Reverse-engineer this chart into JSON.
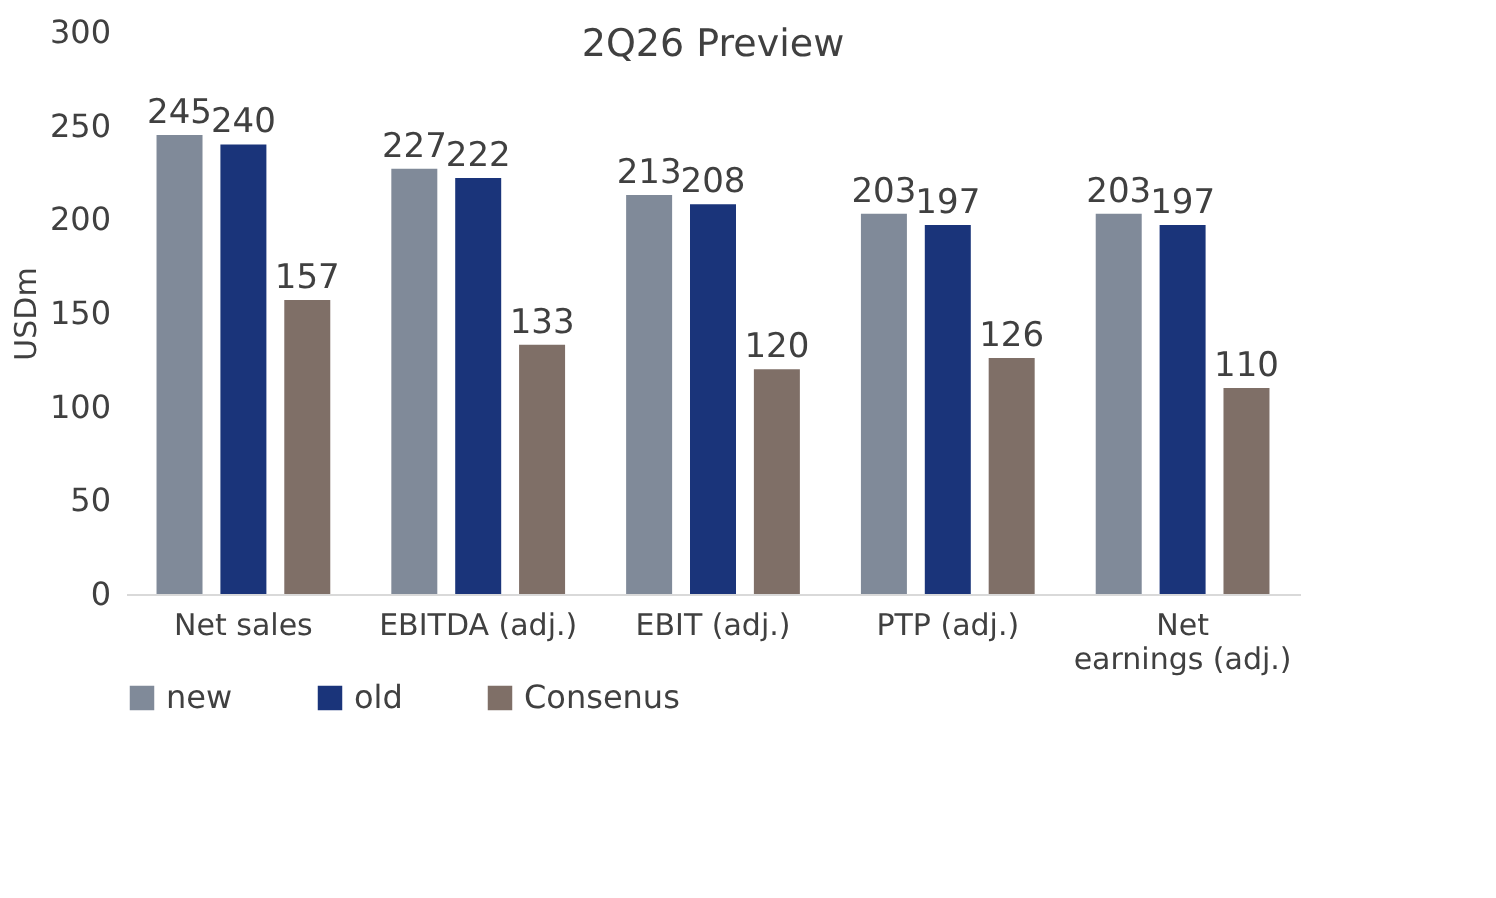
{
  "chart_data": {
    "type": "bar",
    "title": "2Q26 Preview",
    "ylabel": "USDm",
    "categories": [
      "Net sales",
      "EBITDA (adj.)",
      "EBIT (adj.)",
      "PTP (adj.)",
      "Net earnings (adj.)"
    ],
    "series": [
      {
        "name": "new",
        "color": "#808a99",
        "values": [
          245,
          227,
          213,
          203,
          203
        ]
      },
      {
        "name": "old",
        "color": "#1a347a",
        "values": [
          240,
          222,
          208,
          197,
          197
        ]
      },
      {
        "name": "Consenus",
        "color": "#7f6f67",
        "values": [
          157,
          133,
          120,
          126,
          110
        ]
      }
    ],
    "ylim": [
      0,
      300
    ],
    "yticks": [
      0,
      50,
      100,
      150,
      200,
      250,
      300
    ],
    "data_labels": true,
    "legend": "bottom",
    "grid": false
  }
}
